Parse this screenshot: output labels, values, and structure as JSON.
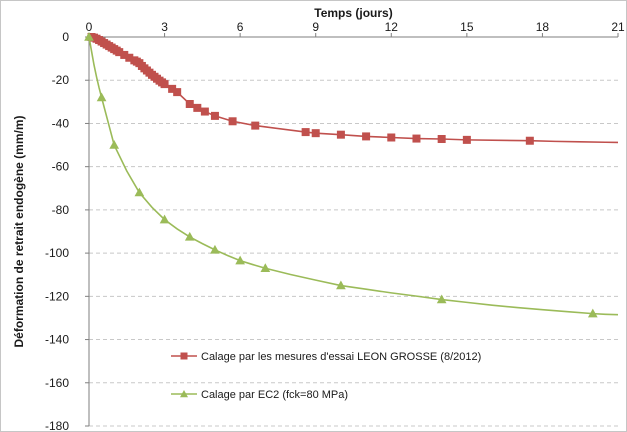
{
  "chart_data": {
    "type": "line",
    "xlabel": "Temps (jours)",
    "ylabel": "Déformation de retrait endogène (mm/m)",
    "xlim": [
      0,
      21
    ],
    "ylim": [
      -180,
      0
    ],
    "x_ticks": [
      "0",
      "3",
      "6",
      "9",
      "12",
      "15",
      "18",
      "21"
    ],
    "y_ticks": [
      "0",
      "-20",
      "-40",
      "-60",
      "-80",
      "-100",
      "-120",
      "-140",
      "-160",
      "-180"
    ],
    "x_axis_position": "top",
    "grid": "horizontal dashed",
    "legend_position": "bottom-center",
    "series": [
      {
        "name": "Calage par les mesures d'essai LEON GROSSE (8/2012)",
        "color": "#c0504d",
        "marker": "square",
        "x": [
          0.1,
          0.2,
          0.3,
          0.4,
          0.5,
          0.6,
          0.7,
          0.8,
          0.9,
          1.0,
          1.1,
          1.2,
          1.4,
          1.6,
          1.8,
          1.9,
          2.0,
          2.1,
          2.2,
          2.3,
          2.4,
          2.5,
          2.6,
          2.7,
          2.8,
          2.9,
          3.0,
          3.3,
          3.5,
          4.0,
          4.3,
          4.6,
          5.0,
          5.7,
          6.6,
          8.6,
          9.0,
          10.0,
          11.0,
          12.0,
          13.0,
          14.0,
          15.0,
          17.5
        ],
        "y": [
          0,
          -0.3,
          -0.8,
          -1.4,
          -2.1,
          -2.8,
          -3.5,
          -4.2,
          -4.9,
          -5.6,
          -6.3,
          -7.0,
          -8.3,
          -9.6,
          -10.8,
          -11.4,
          -12.1,
          -13.4,
          -14.5,
          -15.5,
          -16.5,
          -17.5,
          -18.4,
          -19.3,
          -20.2,
          -21.0,
          -21.8,
          -24.0,
          -25.5,
          -31.0,
          -32.8,
          -34.5,
          -36.5,
          -39.0,
          -41.0,
          -44.0,
          -44.5,
          -45.2,
          -46.0,
          -46.5,
          -47.0,
          -47.2,
          -47.6,
          -48.0
        ],
        "curve_x": [
          17.5,
          18.5,
          19.5,
          20.5,
          21
        ],
        "curve_y": [
          -48.0,
          -48.3,
          -48.5,
          -48.7,
          -48.8
        ]
      },
      {
        "name": "Calage par EC2 (fck=80 MPa)",
        "color": "#9bbb59",
        "marker": "triangle",
        "x": [
          0,
          0.5,
          1,
          2,
          3,
          4,
          5,
          6,
          7,
          10,
          14,
          20
        ],
        "y": [
          0,
          -28,
          -50,
          -72,
          -84.5,
          -92.5,
          -98.5,
          -103.5,
          -107,
          -115,
          -121.5,
          -128
        ],
        "curve_x": [
          0,
          0.1,
          0.2,
          0.3,
          0.4,
          0.5,
          0.75,
          1,
          1.5,
          2,
          2.5,
          3,
          3.5,
          4,
          4.5,
          5,
          5.5,
          6,
          6.5,
          7,
          8,
          9,
          10,
          11,
          12,
          13,
          14,
          15,
          16,
          17,
          18,
          19,
          20,
          20.5,
          21
        ],
        "curve_y": [
          0,
          -6.5,
          -13,
          -18.5,
          -23.5,
          -28,
          -39,
          -50,
          -62,
          -72,
          -78.8,
          -84.5,
          -88.8,
          -92.5,
          -95.6,
          -98.5,
          -101.1,
          -103.5,
          -105.3,
          -107,
          -109.9,
          -112.5,
          -115,
          -116.7,
          -118.4,
          -119.9,
          -121.5,
          -122.8,
          -124.1,
          -125.2,
          -126.2,
          -127.1,
          -128,
          -128.3,
          -128.5
        ]
      }
    ]
  }
}
